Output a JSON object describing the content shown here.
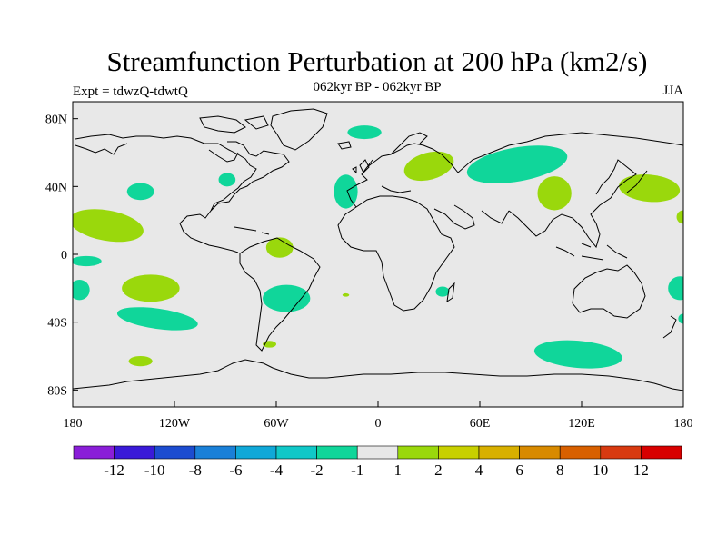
{
  "header": {
    "title": "Streamfunction Perturbation at 200 hPa (km2/s)",
    "subtitle": "062kyr BP - 062kyr BP",
    "experiment": "Expt = tdwzQ-tdwtQ",
    "season": "JJA"
  },
  "map": {
    "projection": "cylindrical equidistant",
    "lon_range": [
      -180,
      180
    ],
    "lat_range": [
      -90,
      90
    ],
    "background_color": "#e8e8e8",
    "x_ticks": [
      {
        "lon": -180,
        "label": "180"
      },
      {
        "lon": -120,
        "label": "120W"
      },
      {
        "lon": -60,
        "label": "60W"
      },
      {
        "lon": 0,
        "label": "0"
      },
      {
        "lon": 60,
        "label": "60E"
      },
      {
        "lon": 120,
        "label": "120E"
      },
      {
        "lon": 180,
        "label": "180"
      }
    ],
    "y_ticks": [
      {
        "lat": 80,
        "label": "80N"
      },
      {
        "lat": 40,
        "label": "40N"
      },
      {
        "lat": 0,
        "label": "0"
      },
      {
        "lat": -40,
        "label": "40S"
      },
      {
        "lat": -80,
        "label": "80S"
      }
    ],
    "anomalies": [
      {
        "lon": -160,
        "lat": 17,
        "rx": 22,
        "ry": 9,
        "rot": 10,
        "sign": "positive"
      },
      {
        "lon": -172,
        "lat": -4,
        "rx": 9,
        "ry": 3,
        "rot": 0,
        "sign": "negative"
      },
      {
        "lon": -176,
        "lat": -21,
        "rx": 6,
        "ry": 6,
        "rot": 0,
        "sign": "negative"
      },
      {
        "lon": -140,
        "lat": 37,
        "rx": 8,
        "ry": 5,
        "rot": 0,
        "sign": "negative"
      },
      {
        "lon": -134,
        "lat": -20,
        "rx": 17,
        "ry": 8,
        "rot": 0,
        "sign": "positive"
      },
      {
        "lon": -130,
        "lat": -38,
        "rx": 24,
        "ry": 6,
        "rot": 8,
        "sign": "negative"
      },
      {
        "lon": -140,
        "lat": -63,
        "rx": 7,
        "ry": 3,
        "rot": 0,
        "sign": "positive"
      },
      {
        "lon": -89,
        "lat": 44,
        "rx": 5,
        "ry": 4,
        "rot": 0,
        "sign": "negative"
      },
      {
        "lon": -58,
        "lat": 4,
        "rx": 8,
        "ry": 6,
        "rot": 0,
        "sign": "positive"
      },
      {
        "lon": -54,
        "lat": -26,
        "rx": 14,
        "ry": 8,
        "rot": 0,
        "sign": "negative"
      },
      {
        "lon": -64,
        "lat": -53,
        "rx": 4,
        "ry": 2,
        "rot": 0,
        "sign": "positive"
      },
      {
        "lon": -19,
        "lat": 37,
        "rx": 7,
        "ry": 10,
        "rot": 0,
        "sign": "negative"
      },
      {
        "lon": -8,
        "lat": 72,
        "rx": 10,
        "ry": 4,
        "rot": 0,
        "sign": "negative"
      },
      {
        "lon": 30,
        "lat": 52,
        "rx": 15,
        "ry": 8,
        "rot": -15,
        "sign": "positive"
      },
      {
        "lon": 38,
        "lat": -22,
        "rx": 4,
        "ry": 3,
        "rot": 0,
        "sign": "negative"
      },
      {
        "lon": -19,
        "lat": -24,
        "rx": 2,
        "ry": 1,
        "rot": 0,
        "sign": "positive"
      },
      {
        "lon": 82,
        "lat": 53,
        "rx": 30,
        "ry": 10,
        "rot": -10,
        "sign": "negative"
      },
      {
        "lon": 104,
        "lat": 36,
        "rx": 10,
        "ry": 10,
        "rot": 0,
        "sign": "positive"
      },
      {
        "lon": 160,
        "lat": 39,
        "rx": 18,
        "ry": 8,
        "rot": 5,
        "sign": "positive"
      },
      {
        "lon": 180,
        "lat": 22,
        "rx": 4,
        "ry": 4,
        "rot": 0,
        "sign": "positive"
      },
      {
        "lon": 178,
        "lat": -20,
        "rx": 7,
        "ry": 7,
        "rot": 0,
        "sign": "negative"
      },
      {
        "lon": 180,
        "lat": -38,
        "rx": 3,
        "ry": 3,
        "rot": 0,
        "sign": "negative"
      },
      {
        "lon": 118,
        "lat": -59,
        "rx": 26,
        "ry": 8,
        "rot": 5,
        "sign": "negative"
      }
    ]
  },
  "colorbar": {
    "colors": [
      "#8a1ed8",
      "#3a1ad8",
      "#1c4cd0",
      "#1a80d8",
      "#10a8d8",
      "#10c8c8",
      "#10d69a",
      "#e8e8e8",
      "#9ad80c",
      "#c8d000",
      "#d8b000",
      "#d88a00",
      "#d86000",
      "#d83a10",
      "#d80000"
    ],
    "labels": [
      "-12",
      "-10",
      "-8",
      "-6",
      "-4",
      "-2",
      "-1",
      "1",
      "2",
      "4",
      "6",
      "8",
      "10",
      "12"
    ],
    "negative_color": "#10d69a",
    "positive_color": "#9ad80c"
  }
}
